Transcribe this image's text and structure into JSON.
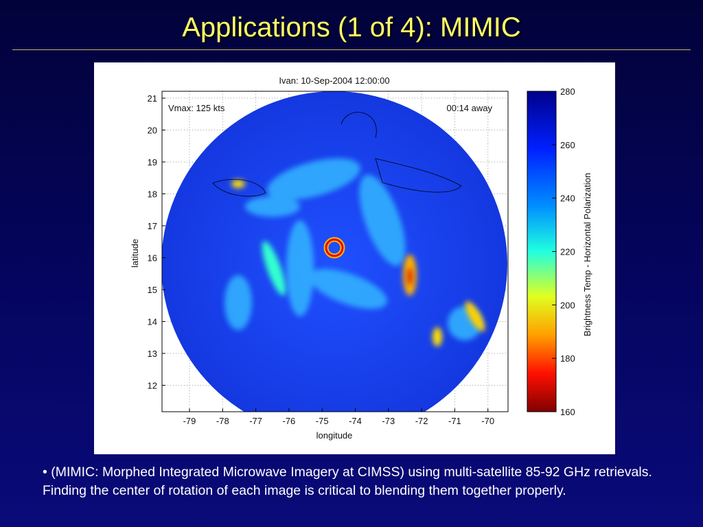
{
  "slide": {
    "title": "Applications (1 of 4): MIMIC",
    "figure": {
      "title": "Ivan: 10-Sep-2004 12:00:00",
      "annotation_left": "Vmax: 125 kts",
      "annotation_right": "00:14 away",
      "xlabel": "longitude",
      "ylabel": "latitude",
      "xticks": [
        "-79",
        "-78",
        "-77",
        "-76",
        "-75",
        "-74",
        "-73",
        "-72",
        "-71",
        "-70"
      ],
      "yticks": [
        "21",
        "20",
        "19",
        "18",
        "17",
        "16",
        "15",
        "14",
        "13",
        "12"
      ],
      "colorbar_label": "Brightness Temp - Horizontal Polarization",
      "colorbar_ticks": [
        "280",
        "260",
        "240",
        "220",
        "200",
        "180",
        "160"
      ]
    },
    "bullet": "• (MIMIC: Morphed Integrated Microwave Imagery at CIMSS) using multi-satellite 85-92 GHz retrievals. Finding the center of rotation of each image is critical to blending them together properly."
  }
}
